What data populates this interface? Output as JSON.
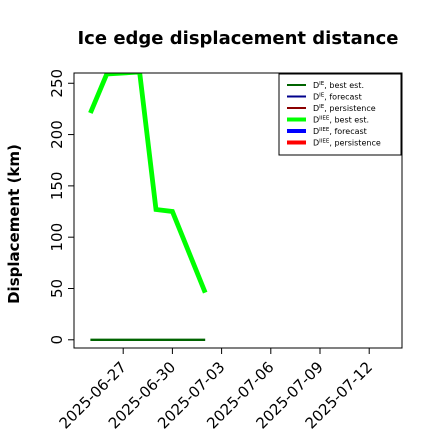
{
  "chart_data": {
    "type": "line",
    "title": "Ice edge displacement distance",
    "xlabel": "",
    "ylabel": "Displacement (km)",
    "x_ticks": [
      "2025-06-27",
      "2025-06-30",
      "2025-07-03",
      "2025-07-06",
      "2025-07-09",
      "2025-07-12"
    ],
    "highlighted_tick": "2025-07-03",
    "highlight_color": "#228b22",
    "xlim": [
      "2025-06-24",
      "2025-07-14"
    ],
    "ylim": [
      -8,
      260
    ],
    "y_ticks": [
      0,
      50,
      100,
      150,
      200,
      250
    ],
    "grid": false,
    "legend_position": "top-right",
    "series": [
      {
        "name_main": "D",
        "name_sup": "IE",
        "name_rest": ", best est.",
        "color": "#006400",
        "width": 2,
        "points": [
          [
            "2025-06-25",
            0
          ],
          [
            "2025-07-02",
            0
          ]
        ]
      },
      {
        "name_main": "D",
        "name_sup": "IE",
        "name_rest": ", forecast",
        "color": "#00008b",
        "width": 2,
        "points": []
      },
      {
        "name_main": "D",
        "name_sup": "IE",
        "name_rest": ", persistence",
        "color": "#8b0000",
        "width": 2,
        "points": []
      },
      {
        "name_main": "D",
        "name_sup": "IIEE",
        "name_rest": ", best est.",
        "color": "#00ff00",
        "width": 4,
        "points": [
          [
            "2025-06-25",
            221
          ],
          [
            "2025-06-26",
            259
          ],
          [
            "2025-06-28",
            261
          ],
          [
            "2025-06-29",
            127
          ],
          [
            "2025-06-30",
            125
          ],
          [
            "2025-07-02",
            46
          ]
        ]
      },
      {
        "name_main": "D",
        "name_sup": "IIEE",
        "name_rest": ", forecast",
        "color": "#0000ff",
        "width": 4,
        "points": []
      },
      {
        "name_main": "D",
        "name_sup": "IIEE",
        "name_rest": ", persistence",
        "color": "#ff0000",
        "width": 4,
        "points": []
      }
    ]
  }
}
